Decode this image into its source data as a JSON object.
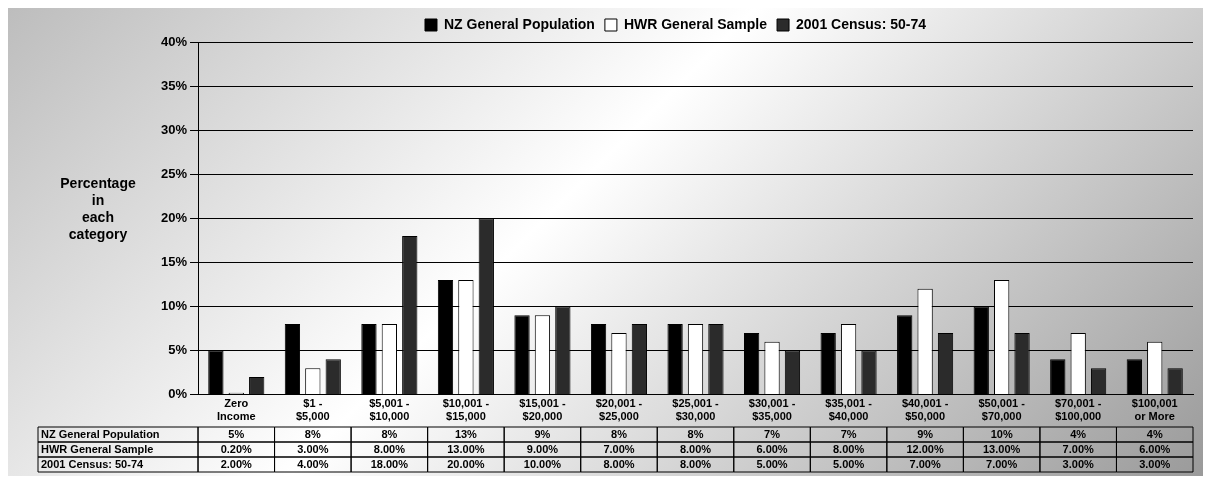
{
  "chart_data": {
    "type": "bar",
    "ylabel": "Percentage in each category",
    "categories": [
      "Zero Income",
      "$1 - $5,000",
      "$5,001 - $10,000",
      "$10,001 - $15,000",
      "$15,001 - $20,000",
      "$20,001 - $25,000",
      "$25,001 - $30,000",
      "$30,001 - $35,000",
      "$35,001 - $40,000",
      "$40,001 - $50,000",
      "$50,001 - $70,000",
      "$70,001 - $100,000",
      "$100,001 or More"
    ],
    "series": [
      {
        "name": "NZ General Population",
        "color": "#000000",
        "values": [
          5,
          8,
          8,
          13,
          9,
          8,
          8,
          7,
          7,
          9,
          10,
          4,
          4
        ],
        "value_labels": [
          "5%",
          "8%",
          "8%",
          "13%",
          "9%",
          "8%",
          "8%",
          "7%",
          "7%",
          "9%",
          "10%",
          "4%",
          "4%"
        ]
      },
      {
        "name": "HWR General Sample",
        "color": "#ffffff",
        "values": [
          0.2,
          3,
          8,
          13,
          9,
          7,
          8,
          6,
          8,
          12,
          13,
          7,
          6
        ],
        "value_labels": [
          "0.20%",
          "3.00%",
          "8.00%",
          "13.00%",
          "9.00%",
          "7.00%",
          "8.00%",
          "6.00%",
          "8.00%",
          "12.00%",
          "13.00%",
          "7.00%",
          "6.00%"
        ]
      },
      {
        "name": "2001 Census: 50-74",
        "color": "#2b2b2b",
        "values": [
          2,
          4,
          18,
          20,
          10,
          8,
          8,
          5,
          5,
          7,
          7,
          3,
          3
        ],
        "value_labels": [
          "2.00%",
          "4.00%",
          "18.00%",
          "20.00%",
          "10.00%",
          "8.00%",
          "8.00%",
          "5.00%",
          "5.00%",
          "7.00%",
          "7.00%",
          "3.00%",
          "3.00%"
        ]
      }
    ],
    "ylim": [
      0,
      40
    ],
    "yticks": [
      {
        "value": 0,
        "label": "0%"
      },
      {
        "value": 5,
        "label": "5%"
      },
      {
        "value": 10,
        "label": "10%"
      },
      {
        "value": 15,
        "label": "15%"
      },
      {
        "value": 20,
        "label": "20%"
      },
      {
        "value": 25,
        "label": "25%"
      },
      {
        "value": 30,
        "label": "30%"
      },
      {
        "value": 35,
        "label": "35%"
      },
      {
        "value": 40,
        "label": "40%"
      }
    ],
    "grid": "y",
    "legend": "top"
  }
}
